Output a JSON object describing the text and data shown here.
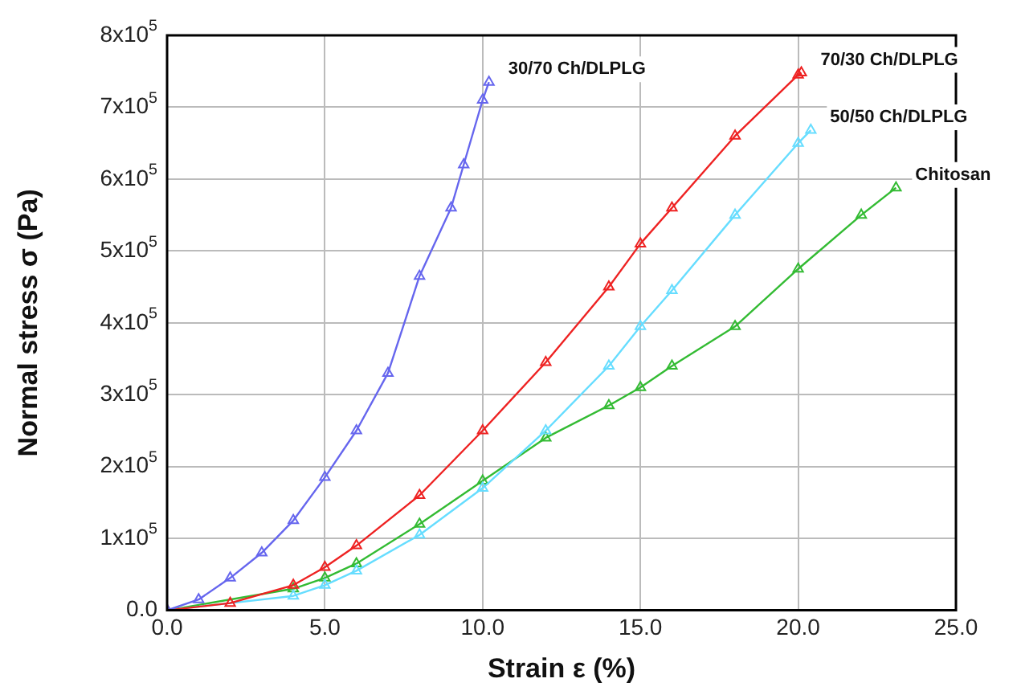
{
  "chart_data": {
    "type": "line",
    "xlabel": "Strain ε (%)",
    "ylabel": "Normal stress σ (Pa)",
    "xlim": [
      0,
      25
    ],
    "xticks": [
      {
        "value": 0,
        "label": "0.0"
      },
      {
        "value": 5,
        "label": "5.0"
      },
      {
        "value": 10,
        "label": "10.0"
      },
      {
        "value": 15,
        "label": "15.0"
      },
      {
        "value": 20,
        "label": "20.0"
      },
      {
        "value": 25,
        "label": "25.0"
      }
    ],
    "ylim": [
      0,
      800000
    ],
    "yticks": [
      {
        "value": 0,
        "label": "0.0"
      },
      {
        "value": 100000,
        "label": "1x10$^{5}$"
      },
      {
        "value": 200000,
        "label": "2x10$^{5}$"
      },
      {
        "value": 300000,
        "label": "3x10$^{5}$"
      },
      {
        "value": 400000,
        "label": "4x10$^{5}$"
      },
      {
        "value": 500000,
        "label": "5x10$^{5}$"
      },
      {
        "value": 600000,
        "label": "6x10$^{5}$"
      },
      {
        "value": 700000,
        "label": "7x10$^{5}$"
      },
      {
        "value": 800000,
        "label": "8x10$^{5}$"
      }
    ],
    "grid": true,
    "legend": false,
    "marker": "triangle",
    "line_style": "solid",
    "series": [
      {
        "name": "30/70 Ch/DLPLG",
        "color": "#6666ee",
        "x": [
          0,
          1,
          2,
          3,
          4,
          5,
          6,
          7,
          8,
          9,
          9.4,
          10,
          10.2
        ],
        "values": [
          0,
          15000,
          45000,
          80000,
          125000,
          185000,
          250000,
          330000,
          465000,
          560000,
          620000,
          710000,
          735000
        ]
      },
      {
        "name": "70/30 Ch/DLPLG",
        "color": "#ee2222",
        "x": [
          0,
          2,
          4,
          5,
          6,
          8,
          10,
          12,
          14,
          15,
          16,
          18,
          20,
          20.1
        ],
        "values": [
          0,
          10000,
          35000,
          60000,
          90000,
          160000,
          250000,
          345000,
          450000,
          510000,
          560000,
          660000,
          745000,
          748000
        ]
      },
      {
        "name": "50/50 Ch/DLPLG",
        "color": "#66ddff",
        "x": [
          0,
          4,
          5,
          6,
          8,
          10,
          12,
          14,
          15,
          16,
          18,
          20,
          20.4
        ],
        "values": [
          0,
          20000,
          35000,
          55000,
          105000,
          170000,
          250000,
          340000,
          395000,
          445000,
          550000,
          650000,
          668000
        ]
      },
      {
        "name": "Chitosan",
        "color": "#33bb33",
        "x": [
          0,
          4,
          5,
          6,
          8,
          10,
          12,
          14,
          15,
          16,
          18,
          20,
          22,
          23.1
        ],
        "values": [
          0,
          30000,
          45000,
          65000,
          120000,
          180000,
          240000,
          285000,
          310000,
          340000,
          395000,
          475000,
          550000,
          588000
        ]
      }
    ]
  }
}
